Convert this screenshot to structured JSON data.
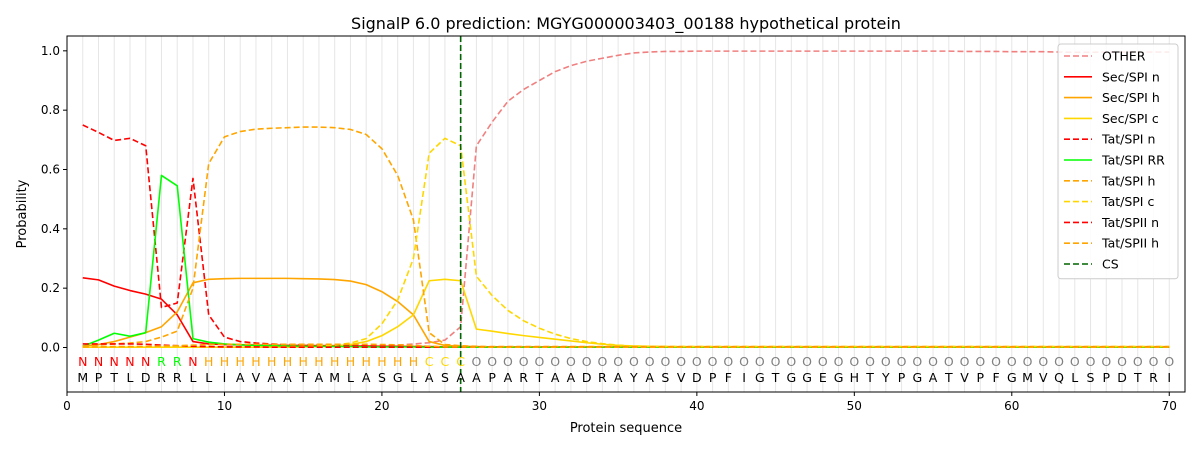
{
  "chart_data": {
    "type": "line",
    "title": "SignalP 6.0 prediction: MGYG000003403_00188 hypothetical protein",
    "xlabel": "Protein sequence",
    "ylabel": "Probability",
    "xlim": [
      0,
      71
    ],
    "ylim": [
      -0.15,
      1.05
    ],
    "xticks": [
      0,
      10,
      20,
      30,
      40,
      50,
      60,
      70
    ],
    "yticks": [
      0.0,
      0.2,
      0.4,
      0.6,
      0.8,
      1.0
    ],
    "ytick_labels": [
      "0.0",
      "0.2",
      "0.4",
      "0.6",
      "0.8",
      "1.0"
    ],
    "vertical_gridlines_at_each_residue": true,
    "legend_position": "upper right",
    "cleavage_site": 25,
    "sequence": [
      "M",
      "P",
      "T",
      "L",
      "D",
      "R",
      "R",
      "L",
      "L",
      "I",
      "A",
      "V",
      "A",
      "A",
      "T",
      "A",
      "M",
      "L",
      "A",
      "S",
      "G",
      "L",
      "A",
      "S",
      "A",
      "A",
      "P",
      "A",
      "R",
      "T",
      "A",
      "A",
      "D",
      "R",
      "A",
      "Y",
      "A",
      "S",
      "V",
      "D",
      "P",
      "F",
      "I",
      "G",
      "T",
      "G",
      "G",
      "E",
      "G",
      "H",
      "T",
      "Y",
      "P",
      "G",
      "A",
      "T",
      "V",
      "P",
      "F",
      "G",
      "M",
      "V",
      "Q",
      "L",
      "S",
      "P",
      "D",
      "T",
      "R",
      "I"
    ],
    "region_labels": [
      "N",
      "N",
      "N",
      "N",
      "N",
      "R",
      "R",
      "N",
      "H",
      "H",
      "H",
      "H",
      "H",
      "H",
      "H",
      "H",
      "H",
      "H",
      "H",
      "H",
      "H",
      "H",
      "C",
      "C",
      "C",
      "O",
      "O",
      "O",
      "O",
      "O",
      "O",
      "O",
      "O",
      "O",
      "O",
      "O",
      "O",
      "O",
      "O",
      "O",
      "O",
      "O",
      "O",
      "O",
      "O",
      "O",
      "O",
      "O",
      "O",
      "O",
      "O",
      "O",
      "O",
      "O",
      "O",
      "O",
      "O",
      "O",
      "O",
      "O",
      "O",
      "O",
      "O",
      "O",
      "O",
      "O",
      "O",
      "O",
      "O",
      "O"
    ],
    "region_colors": {
      "N": "#ff0000",
      "R": "#00ff00",
      "H": "#ffa500",
      "C": "#ffd700",
      "O": "#808080"
    },
    "series": [
      {
        "name": "OTHER",
        "color": "#f08080",
        "dash": "dashed",
        "values": [
          0.002,
          0.002,
          0.002,
          0.002,
          0.002,
          0.002,
          0.002,
          0.002,
          0.002,
          0.002,
          0.002,
          0.003,
          0.003,
          0.003,
          0.003,
          0.003,
          0.004,
          0.004,
          0.005,
          0.006,
          0.008,
          0.012,
          0.016,
          0.025,
          0.07,
          0.68,
          0.76,
          0.83,
          0.87,
          0.9,
          0.93,
          0.95,
          0.965,
          0.975,
          0.985,
          0.993,
          0.996,
          0.998,
          0.998,
          0.999,
          0.999,
          0.999,
          0.999,
          0.999,
          0.999,
          0.999,
          0.999,
          0.999,
          0.999,
          0.999,
          0.999,
          0.999,
          0.999,
          0.999,
          0.999,
          0.999,
          0.998,
          0.998,
          0.998,
          0.997,
          0.997,
          0.997,
          0.996,
          0.995,
          0.995,
          0.996,
          0.996,
          0.996,
          0.996,
          0.996
        ]
      },
      {
        "name": "Sec/SPI n",
        "color": "#ff0000",
        "dash": "solid",
        "values": [
          0.235,
          0.228,
          0.207,
          0.192,
          0.18,
          0.163,
          0.11,
          0.02,
          0.012,
          0.01,
          0.009,
          0.008,
          0.008,
          0.007,
          0.007,
          0.006,
          0.006,
          0.005,
          0.005,
          0.004,
          0.004,
          0.003,
          0.003,
          0.002,
          0.002,
          0.002,
          0.002,
          0.001,
          0.001,
          0.001,
          0.001,
          0.001,
          0.001,
          0.001,
          0.001,
          0.001,
          0.001,
          0.001,
          0.001,
          0.001,
          0.001,
          0.001,
          0.001,
          0.001,
          0.001,
          0.001,
          0.001,
          0.001,
          0.001,
          0.001,
          0.001,
          0.001,
          0.001,
          0.001,
          0.001,
          0.001,
          0.001,
          0.001,
          0.001,
          0.001,
          0.001,
          0.001,
          0.001,
          0.001,
          0.001,
          0.001,
          0.001,
          0.001,
          0.001,
          0.001
        ]
      },
      {
        "name": "Sec/SPI h",
        "color": "#ffa500",
        "dash": "solid",
        "values": [
          0.005,
          0.01,
          0.02,
          0.035,
          0.05,
          0.07,
          0.12,
          0.218,
          0.23,
          0.232,
          0.233,
          0.233,
          0.233,
          0.233,
          0.232,
          0.231,
          0.229,
          0.224,
          0.212,
          0.188,
          0.155,
          0.11,
          0.02,
          0.007,
          0.004,
          0.003,
          0.002,
          0.002,
          0.002,
          0.002,
          0.002,
          0.002,
          0.002,
          0.002,
          0.002,
          0.002,
          0.002,
          0.002,
          0.002,
          0.002,
          0.002,
          0.002,
          0.002,
          0.002,
          0.002,
          0.002,
          0.002,
          0.002,
          0.002,
          0.002,
          0.002,
          0.002,
          0.002,
          0.002,
          0.002,
          0.002,
          0.002,
          0.002,
          0.002,
          0.002,
          0.002,
          0.002,
          0.002,
          0.002,
          0.002,
          0.002,
          0.002,
          0.002,
          0.002,
          0.002
        ]
      },
      {
        "name": "Sec/SPI c",
        "color": "#ffd700",
        "dash": "solid",
        "values": [
          0.001,
          0.001,
          0.001,
          0.001,
          0.001,
          0.001,
          0.001,
          0.001,
          0.001,
          0.001,
          0.001,
          0.001,
          0.001,
          0.001,
          0.002,
          0.003,
          0.005,
          0.01,
          0.02,
          0.04,
          0.07,
          0.11,
          0.225,
          0.23,
          0.225,
          0.062,
          0.055,
          0.047,
          0.04,
          0.034,
          0.028,
          0.022,
          0.016,
          0.011,
          0.007,
          0.005,
          0.004,
          0.003,
          0.002,
          0.002,
          0.002,
          0.002,
          0.002,
          0.002,
          0.002,
          0.002,
          0.002,
          0.002,
          0.002,
          0.002,
          0.002,
          0.002,
          0.002,
          0.002,
          0.002,
          0.002,
          0.002,
          0.002,
          0.002,
          0.002,
          0.002,
          0.002,
          0.002,
          0.002,
          0.002,
          0.002,
          0.002,
          0.002,
          0.002,
          0.002
        ]
      },
      {
        "name": "Tat/SPI n",
        "color": "#ff0000",
        "dash": "dashed",
        "values": [
          0.75,
          0.725,
          0.698,
          0.705,
          0.68,
          0.135,
          0.15,
          0.57,
          0.11,
          0.035,
          0.02,
          0.015,
          0.012,
          0.01,
          0.009,
          0.008,
          0.007,
          0.006,
          0.005,
          0.004,
          0.004,
          0.003,
          0.003,
          0.002,
          0.002,
          0.002,
          0.001,
          0.001,
          0.001,
          0.001,
          0.001,
          0.001,
          0.001,
          0.001,
          0.001,
          0.001,
          0.001,
          0.001,
          0.001,
          0.001,
          0.001,
          0.001,
          0.001,
          0.001,
          0.001,
          0.001,
          0.001,
          0.001,
          0.001,
          0.001,
          0.001,
          0.001,
          0.001,
          0.001,
          0.001,
          0.001,
          0.001,
          0.001,
          0.001,
          0.001,
          0.001,
          0.001,
          0.001,
          0.001,
          0.001,
          0.001,
          0.001,
          0.001,
          0.001,
          0.001
        ]
      },
      {
        "name": "Tat/SPI RR",
        "color": "#00ff00",
        "dash": "solid",
        "values": [
          0.004,
          0.025,
          0.048,
          0.038,
          0.05,
          0.58,
          0.545,
          0.03,
          0.018,
          0.012,
          0.009,
          0.007,
          0.006,
          0.005,
          0.004,
          0.004,
          0.003,
          0.003,
          0.002,
          0.002,
          0.002,
          0.002,
          0.001,
          0.001,
          0.001,
          0.001,
          0.001,
          0.001,
          0.001,
          0.001,
          0.001,
          0.001,
          0.001,
          0.001,
          0.001,
          0.001,
          0.001,
          0.001,
          0.001,
          0.001,
          0.001,
          0.001,
          0.001,
          0.001,
          0.001,
          0.001,
          0.001,
          0.001,
          0.001,
          0.001,
          0.001,
          0.001,
          0.001,
          0.001,
          0.001,
          0.001,
          0.001,
          0.001,
          0.001,
          0.001,
          0.001,
          0.001,
          0.001,
          0.001,
          0.001,
          0.001,
          0.001,
          0.001,
          0.001,
          0.001
        ]
      },
      {
        "name": "Tat/SPI h",
        "color": "#ffa500",
        "dash": "dashed",
        "values": [
          0.005,
          0.008,
          0.012,
          0.015,
          0.02,
          0.035,
          0.055,
          0.2,
          0.62,
          0.71,
          0.728,
          0.736,
          0.739,
          0.741,
          0.743,
          0.743,
          0.741,
          0.735,
          0.718,
          0.67,
          0.58,
          0.43,
          0.05,
          0.01,
          0.006,
          0.004,
          0.003,
          0.003,
          0.003,
          0.003,
          0.003,
          0.003,
          0.003,
          0.003,
          0.003,
          0.003,
          0.003,
          0.003,
          0.003,
          0.003,
          0.003,
          0.003,
          0.003,
          0.003,
          0.003,
          0.003,
          0.003,
          0.003,
          0.003,
          0.003,
          0.003,
          0.003,
          0.003,
          0.003,
          0.003,
          0.003,
          0.003,
          0.003,
          0.003,
          0.003,
          0.003,
          0.003,
          0.003,
          0.003,
          0.003,
          0.003,
          0.003,
          0.003,
          0.003,
          0.003
        ]
      },
      {
        "name": "Tat/SPI c",
        "color": "#ffd700",
        "dash": "dashed",
        "values": [
          0.001,
          0.001,
          0.001,
          0.001,
          0.001,
          0.001,
          0.001,
          0.002,
          0.002,
          0.002,
          0.002,
          0.002,
          0.003,
          0.003,
          0.004,
          0.005,
          0.008,
          0.015,
          0.03,
          0.08,
          0.16,
          0.3,
          0.655,
          0.705,
          0.68,
          0.24,
          0.175,
          0.125,
          0.09,
          0.065,
          0.045,
          0.03,
          0.02,
          0.013,
          0.008,
          0.005,
          0.004,
          0.003,
          0.003,
          0.003,
          0.003,
          0.003,
          0.003,
          0.003,
          0.003,
          0.003,
          0.003,
          0.003,
          0.003,
          0.003,
          0.003,
          0.003,
          0.003,
          0.003,
          0.003,
          0.003,
          0.003,
          0.003,
          0.003,
          0.003,
          0.003,
          0.003,
          0.003,
          0.003,
          0.003,
          0.003,
          0.003,
          0.003,
          0.003,
          0.003
        ]
      },
      {
        "name": "Tat/SPII n",
        "color": "#ff0000",
        "dash": "dashed",
        "values": [
          0.012,
          0.012,
          0.012,
          0.012,
          0.011,
          0.008,
          0.006,
          0.004,
          0.003,
          0.002,
          0.002,
          0.002,
          0.001,
          0.001,
          0.001,
          0.001,
          0.001,
          0.001,
          0.001,
          0.001,
          0.001,
          0.001,
          0.001,
          0.001,
          0.001,
          0.001,
          0.001,
          0.001,
          0.001,
          0.001,
          0.001,
          0.001,
          0.001,
          0.001,
          0.001,
          0.001,
          0.001,
          0.001,
          0.001,
          0.001,
          0.001,
          0.001,
          0.001,
          0.001,
          0.001,
          0.001,
          0.001,
          0.001,
          0.001,
          0.001,
          0.001,
          0.001,
          0.001,
          0.001,
          0.001,
          0.001,
          0.001,
          0.001,
          0.001,
          0.001,
          0.001,
          0.001,
          0.001,
          0.001,
          0.001,
          0.001,
          0.001,
          0.001,
          0.001,
          0.001
        ]
      },
      {
        "name": "Tat/SPII h",
        "color": "#ffa500",
        "dash": "dashed",
        "values": [
          0.002,
          0.002,
          0.003,
          0.003,
          0.004,
          0.005,
          0.006,
          0.008,
          0.01,
          0.011,
          0.011,
          0.011,
          0.011,
          0.011,
          0.011,
          0.011,
          0.011,
          0.011,
          0.011,
          0.01,
          0.009,
          0.007,
          0.004,
          0.002,
          0.002,
          0.001,
          0.001,
          0.001,
          0.001,
          0.001,
          0.001,
          0.001,
          0.001,
          0.001,
          0.001,
          0.001,
          0.001,
          0.001,
          0.001,
          0.001,
          0.001,
          0.001,
          0.001,
          0.001,
          0.001,
          0.001,
          0.001,
          0.001,
          0.001,
          0.001,
          0.001,
          0.001,
          0.001,
          0.001,
          0.001,
          0.001,
          0.001,
          0.001,
          0.001,
          0.001,
          0.001,
          0.001,
          0.001,
          0.001,
          0.001,
          0.001,
          0.001,
          0.001,
          0.001,
          0.001
        ]
      }
    ],
    "cs_legend": {
      "name": "CS",
      "color": "#006400",
      "dash": "dashed"
    }
  }
}
